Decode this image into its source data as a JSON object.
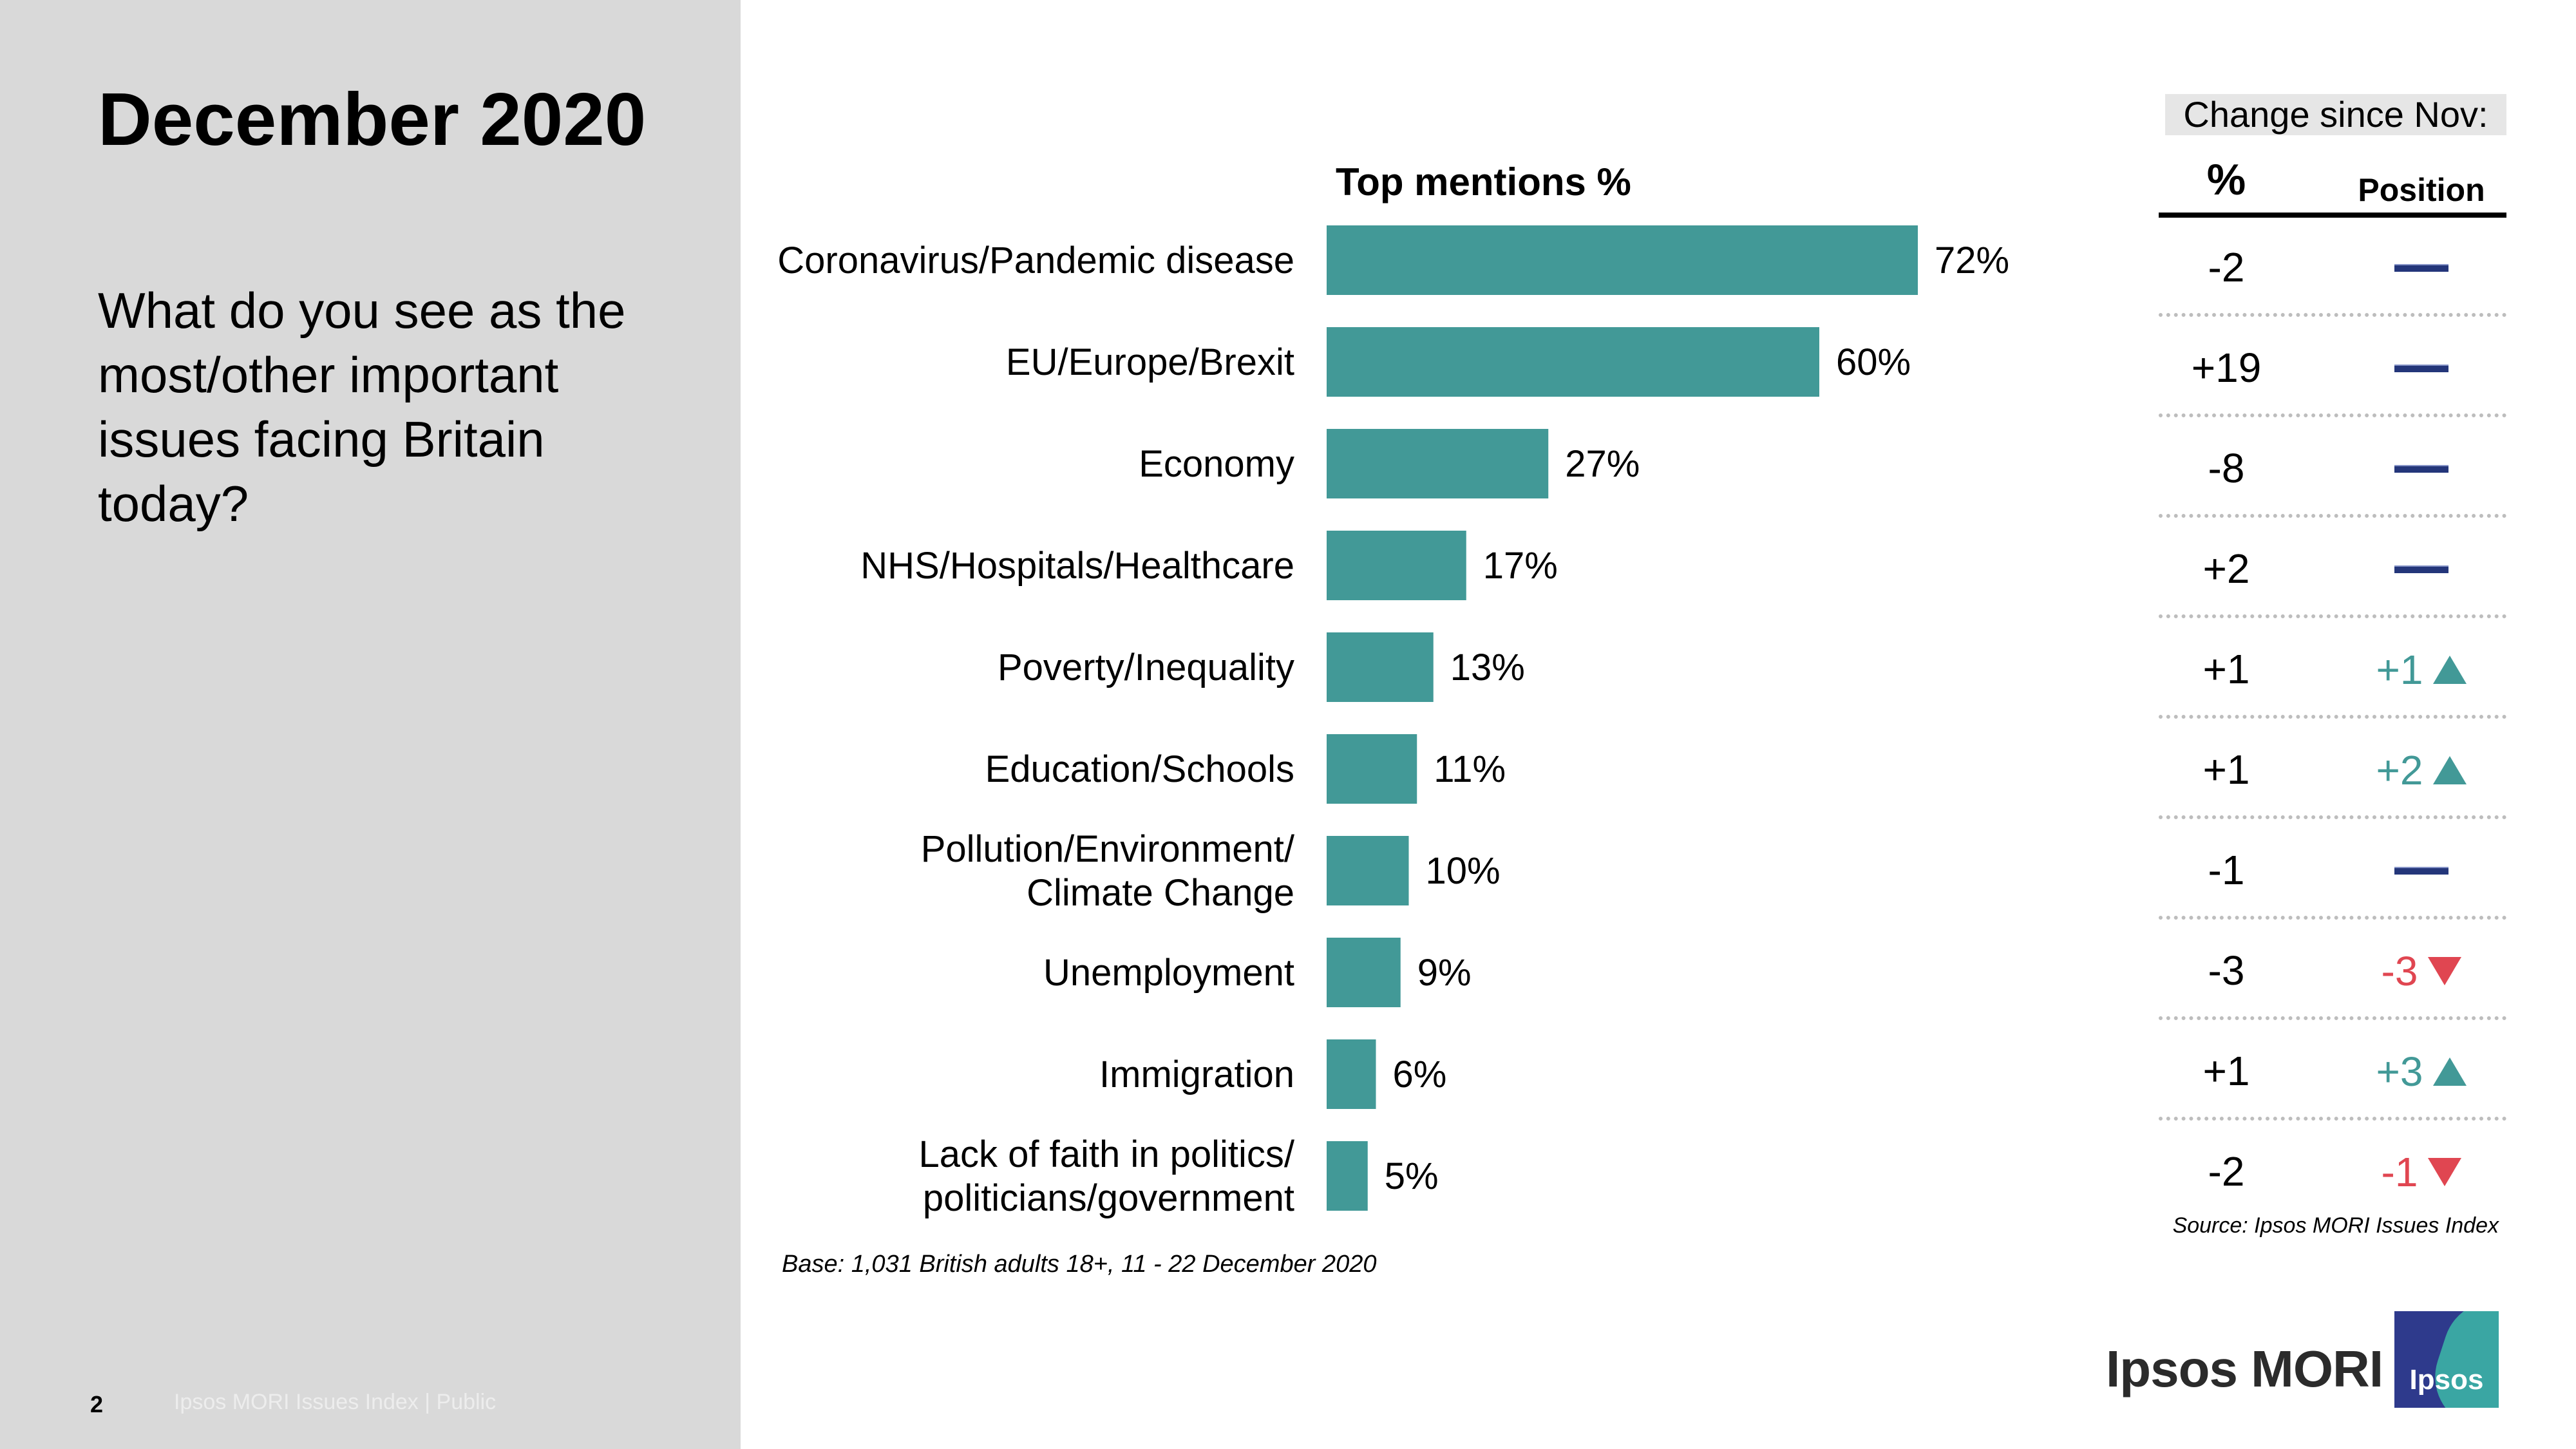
{
  "slide": {
    "title": "December 2020",
    "question": "What do you see as the most/other important issues facing Britain today?",
    "page_number": "2",
    "footer": "Ipsos MORI Issues Index | Public"
  },
  "chart_data": {
    "type": "bar",
    "orientation": "horizontal",
    "title": "Top mentions %",
    "categories": [
      "Coronavirus/Pandemic disease",
      "EU/Europe/Brexit",
      "Economy",
      "NHS/Hospitals/Healthcare",
      "Poverty/Inequality",
      "Education/Schools",
      "Pollution/Environment/ Climate Change",
      "Unemployment",
      "Immigration",
      "Lack of faith in politics/ politicians/government"
    ],
    "category_lines": [
      [
        "Coronavirus/Pandemic disease"
      ],
      [
        "EU/Europe/Brexit"
      ],
      [
        "Economy"
      ],
      [
        "NHS/Hospitals/Healthcare"
      ],
      [
        "Poverty/Inequality"
      ],
      [
        "Education/Schools"
      ],
      [
        "Pollution/Environment/",
        "Climate Change"
      ],
      [
        "Unemployment"
      ],
      [
        "Immigration"
      ],
      [
        "Lack of faith in politics/",
        "politicians/government"
      ]
    ],
    "values": [
      72,
      60,
      27,
      17,
      13,
      11,
      10,
      9,
      6,
      5
    ],
    "value_labels": [
      "72%",
      "60%",
      "27%",
      "17%",
      "13%",
      "11%",
      "10%",
      "9%",
      "6%",
      "5%"
    ],
    "xlim": [
      0,
      100
    ],
    "grid": false,
    "bar_color": "#429997"
  },
  "change": {
    "header": "Change since Nov:",
    "pct_col": "%",
    "pos_col": "Position",
    "pct": [
      "-2",
      "+19",
      "-8",
      "+2",
      "+1",
      "+1",
      "-1",
      "-3",
      "+1",
      "-2"
    ],
    "position": [
      {
        "dir": "none",
        "text": ""
      },
      {
        "dir": "none",
        "text": ""
      },
      {
        "dir": "none",
        "text": ""
      },
      {
        "dir": "none",
        "text": ""
      },
      {
        "dir": "up",
        "text": "+1"
      },
      {
        "dir": "up",
        "text": "+2"
      },
      {
        "dir": "none",
        "text": ""
      },
      {
        "dir": "down",
        "text": "-3"
      },
      {
        "dir": "up",
        "text": "+3"
      },
      {
        "dir": "down",
        "text": "-1"
      }
    ],
    "colors": {
      "up": "#429997",
      "down": "#e04651",
      "none": "#24367a"
    }
  },
  "notes": {
    "base": "Base: 1,031 British adults 18+, 11 - 22 December 2020",
    "source": "Source: Ipsos MORI Issues Index"
  },
  "brand": {
    "wordmark": "Ipsos MORI",
    "logo_text": "Ipsos"
  }
}
